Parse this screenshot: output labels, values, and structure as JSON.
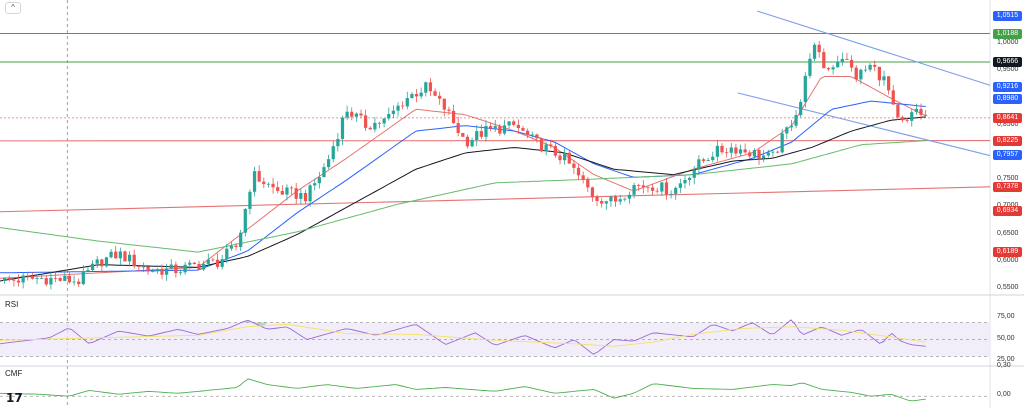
{
  "ui": {
    "collapse_icon": "chevron-up-icon",
    "rsi_label": "RSI",
    "cmf_label": "CMF",
    "logo": "TV"
  },
  "chart_data": [
    {
      "type": "line",
      "title": "",
      "price_axis": {
        "ticks": [
          "1,0000",
          "0,9500",
          "0,8500",
          "0,7500",
          "0,7000",
          "0,6500",
          "0,6000",
          "0,5500"
        ],
        "tick_values": [
          1.0,
          0.95,
          0.85,
          0.75,
          0.7,
          0.65,
          0.6,
          0.55
        ],
        "ylim": [
          0.543,
          1.073
        ]
      },
      "price_labels": [
        {
          "text": "1,0515",
          "value": 1.0515,
          "color": "#2962ff"
        },
        {
          "text": "1,0188",
          "value": 1.0188,
          "color": "#43a047"
        },
        {
          "text": "0,9666",
          "value": 0.9666,
          "color": "#131722"
        },
        {
          "text": "0,9216",
          "value": 0.9216,
          "color": "#2962ff"
        },
        {
          "text": "0,8980",
          "value": 0.898,
          "color": "#2962ff"
        },
        {
          "text": "0,8641",
          "value": 0.8641,
          "color": "#e53935"
        },
        {
          "text": "0,8225",
          "value": 0.8225,
          "color": "#e53935"
        },
        {
          "text": "0,7957",
          "value": 0.7957,
          "color": "#2962ff"
        },
        {
          "text": "0,7378",
          "value": 0.7378,
          "color": "#e53935"
        },
        {
          "text": "0,6934",
          "value": 0.6934,
          "color": "#e53935"
        },
        {
          "text": "0,6189",
          "value": 0.6189,
          "color": "#e53935"
        }
      ],
      "horizontal_levels": [
        {
          "value": 1.0188,
          "color": "#43a047"
        },
        {
          "value": 0.9666,
          "color": "#43a047"
        }
      ],
      "trend_lines": [
        {
          "color": "#e57373",
          "x": [
            0,
            1
          ],
          "y": [
            0.822,
            0.8225
          ]
        },
        {
          "color": "#e57373",
          "x": [
            0,
            1
          ],
          "y": [
            0.692,
            0.7378
          ]
        },
        {
          "color": "#7e9fe8",
          "x": [
            0.765,
            1
          ],
          "y": [
            1.06,
            0.924
          ]
        },
        {
          "color": "#7e9fe8",
          "x": [
            0.745,
            1
          ],
          "y": [
            0.91,
            0.795
          ]
        }
      ],
      "vertical_marker": {
        "x": 0.068,
        "style": "dashed"
      },
      "series": [
        {
          "style": "candles",
          "colors": {
            "up": "#26a69a",
            "down": "#ef5350"
          },
          "anchors_x": [
            0,
            0.04,
            0.08,
            0.1,
            0.12,
            0.15,
            0.18,
            0.2,
            0.22,
            0.24,
            0.255,
            0.28,
            0.31,
            0.33,
            0.35,
            0.37,
            0.39,
            0.41,
            0.43,
            0.45,
            0.47,
            0.49,
            0.52,
            0.54,
            0.57,
            0.6,
            0.62,
            0.64,
            0.66,
            0.68,
            0.7,
            0.72,
            0.74,
            0.76,
            0.78,
            0.8,
            0.81,
            0.82,
            0.835,
            0.85,
            0.865,
            0.88,
            0.895,
            0.905,
            0.915,
            0.925,
            0.935
          ],
          "anchors_y": [
            0.565,
            0.57,
            0.565,
            0.6,
            0.615,
            0.585,
            0.585,
            0.595,
            0.6,
            0.63,
            0.76,
            0.73,
            0.72,
            0.78,
            0.88,
            0.85,
            0.86,
            0.9,
            0.92,
            0.88,
            0.82,
            0.84,
            0.85,
            0.82,
            0.79,
            0.72,
            0.71,
            0.74,
            0.74,
            0.73,
            0.77,
            0.8,
            0.81,
            0.8,
            0.79,
            0.86,
            0.9,
            1.0,
            0.95,
            0.98,
            0.94,
            0.96,
            0.93,
            0.86,
            0.85,
            0.88,
            0.865
          ]
        },
        {
          "style": "line",
          "color": "#e57373",
          "anchors_x": [
            0,
            0.2,
            0.25,
            0.3,
            0.35,
            0.42,
            0.47,
            0.52,
            0.56,
            0.6,
            0.64,
            0.7,
            0.76,
            0.8,
            0.83,
            0.86,
            0.9,
            0.935
          ],
          "anchors_y": [
            0.57,
            0.59,
            0.66,
            0.73,
            0.79,
            0.88,
            0.87,
            0.84,
            0.81,
            0.76,
            0.73,
            0.77,
            0.8,
            0.85,
            0.94,
            0.94,
            0.9,
            0.868
          ]
        },
        {
          "style": "line",
          "color": "#2962ff",
          "anchors_x": [
            0,
            0.2,
            0.25,
            0.3,
            0.35,
            0.42,
            0.47,
            0.52,
            0.56,
            0.6,
            0.64,
            0.7,
            0.76,
            0.8,
            0.84,
            0.88,
            0.935
          ],
          "anchors_y": [
            0.58,
            0.585,
            0.62,
            0.69,
            0.75,
            0.84,
            0.85,
            0.84,
            0.82,
            0.78,
            0.755,
            0.76,
            0.79,
            0.82,
            0.88,
            0.895,
            0.885
          ]
        },
        {
          "style": "line",
          "color": "#131722",
          "anchors_x": [
            0,
            0.1,
            0.2,
            0.25,
            0.3,
            0.35,
            0.42,
            0.47,
            0.52,
            0.57,
            0.62,
            0.68,
            0.74,
            0.78,
            0.82,
            0.86,
            0.9,
            0.935
          ],
          "anchors_y": [
            0.565,
            0.595,
            0.59,
            0.61,
            0.65,
            0.7,
            0.77,
            0.8,
            0.81,
            0.8,
            0.77,
            0.76,
            0.785,
            0.79,
            0.81,
            0.84,
            0.86,
            0.866
          ]
        },
        {
          "style": "line",
          "color": "#66bb6a",
          "anchors_x": [
            0,
            0.1,
            0.2,
            0.3,
            0.4,
            0.5,
            0.6,
            0.7,
            0.8,
            0.87,
            0.935
          ],
          "anchors_y": [
            0.663,
            0.638,
            0.618,
            0.655,
            0.705,
            0.745,
            0.752,
            0.76,
            0.78,
            0.815,
            0.8225
          ]
        }
      ]
    },
    {
      "type": "line",
      "title": "RSI",
      "axis_ticks": [
        "75,00",
        "50,00",
        "25,00"
      ],
      "axis_values": [
        75,
        50,
        25
      ],
      "ylim": [
        20,
        100
      ],
      "band": [
        30,
        70
      ],
      "series": [
        {
          "color": "#9c6ad6",
          "anchors_x": [
            0,
            0.05,
            0.07,
            0.09,
            0.12,
            0.15,
            0.18,
            0.2,
            0.23,
            0.25,
            0.27,
            0.29,
            0.31,
            0.35,
            0.38,
            0.42,
            0.45,
            0.48,
            0.5,
            0.53,
            0.56,
            0.58,
            0.6,
            0.62,
            0.64,
            0.66,
            0.7,
            0.72,
            0.74,
            0.76,
            0.78,
            0.8,
            0.81,
            0.83,
            0.85,
            0.87,
            0.89,
            0.9,
            0.91,
            0.92,
            0.935
          ],
          "anchors_y": [
            45,
            52,
            64,
            45,
            60,
            54,
            62,
            56,
            63,
            73,
            62,
            65,
            50,
            63,
            55,
            68,
            44,
            58,
            43,
            55,
            40,
            50,
            32,
            50,
            48,
            58,
            53,
            68,
            60,
            70,
            55,
            74,
            55,
            65,
            55,
            62,
            44,
            58,
            48,
            44,
            42
          ]
        },
        {
          "color": "#f2e26b",
          "anchors_x": [
            0,
            0.1,
            0.2,
            0.25,
            0.29,
            0.35,
            0.42,
            0.5,
            0.58,
            0.62,
            0.66,
            0.7,
            0.75,
            0.8,
            0.85,
            0.9,
            0.935
          ],
          "anchors_y": [
            49,
            52,
            55,
            65,
            68,
            57,
            56,
            49,
            45,
            42,
            47,
            56,
            63,
            65,
            61,
            53,
            47
          ]
        }
      ]
    },
    {
      "type": "line",
      "title": "CMF",
      "axis_ticks": [
        "0,30",
        "0,00"
      ],
      "axis_values": [
        0.3,
        0.0
      ],
      "ylim": [
        -0.09,
        0.3
      ],
      "zero_line": 0.0,
      "series": [
        {
          "color": "#4caf50",
          "anchors_x": [
            0,
            0.04,
            0.07,
            0.09,
            0.12,
            0.15,
            0.18,
            0.21,
            0.24,
            0.25,
            0.27,
            0.3,
            0.33,
            0.36,
            0.4,
            0.42,
            0.45,
            0.5,
            0.53,
            0.56,
            0.6,
            0.62,
            0.64,
            0.66,
            0.7,
            0.74,
            0.78,
            0.8,
            0.81,
            0.83,
            0.86,
            0.88,
            0.9,
            0.92,
            0.935
          ],
          "anchors_y": [
            0.03,
            0.02,
            0.0,
            0.06,
            0.02,
            0.05,
            0.03,
            0.06,
            0.09,
            0.18,
            0.12,
            0.08,
            0.12,
            0.08,
            0.12,
            0.07,
            0.09,
            0.05,
            0.1,
            0.03,
            0.07,
            -0.02,
            0.03,
            0.13,
            0.08,
            0.07,
            0.12,
            0.11,
            0.14,
            0.07,
            0.04,
            0.0,
            0.02,
            -0.05,
            -0.03
          ]
        }
      ]
    }
  ]
}
